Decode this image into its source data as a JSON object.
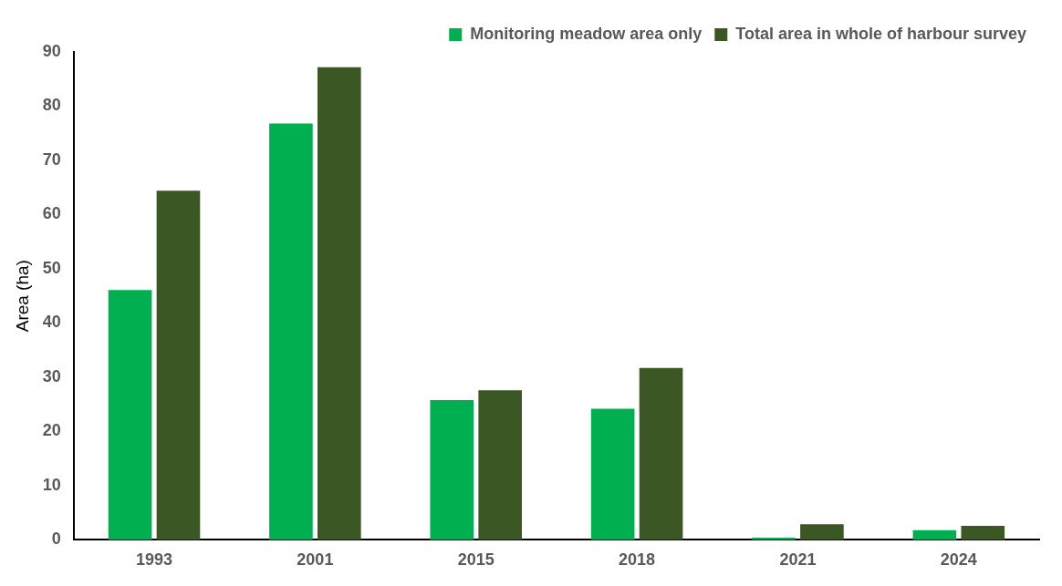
{
  "chart_data": {
    "type": "bar",
    "ylabel": "Area (ha)",
    "categories": [
      "1993",
      "2001",
      "2015",
      "2018",
      "2021",
      "2024"
    ],
    "series": [
      {
        "name": "Monitoring meadow area only",
        "color": "#00b050",
        "values": [
          46.1,
          76.8,
          25.8,
          24.2,
          0.4,
          1.8
        ]
      },
      {
        "name": "Total area in whole of harbour survey",
        "color": "#3b5724",
        "values": [
          64.4,
          87.2,
          27.6,
          31.7,
          2.9,
          2.6
        ]
      }
    ],
    "ylim": [
      0,
      90
    ],
    "yticks": [
      0,
      10,
      20,
      30,
      40,
      50,
      60,
      70,
      80,
      90
    ],
    "grid": false,
    "legend": "top right"
  }
}
